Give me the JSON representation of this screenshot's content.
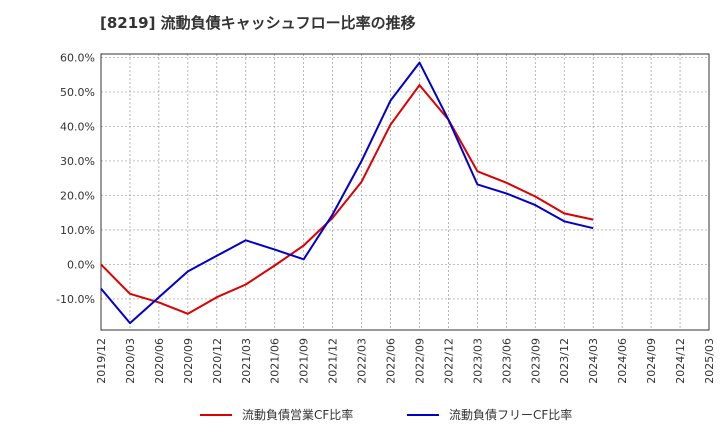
{
  "chart_data": {
    "type": "line",
    "title": "[8219]  流動負債キャッシュフロー比率の推移",
    "xlabel": "",
    "ylabel": "",
    "ylim": [
      -19.0,
      61.0
    ],
    "yticks": [
      60,
      50,
      40,
      30,
      20,
      10,
      0,
      -10
    ],
    "ytick_labels": [
      "60.0%",
      "50.0%",
      "40.0%",
      "30.0%",
      "20.0%",
      "10.0%",
      "0.0%",
      "-10.0%"
    ],
    "categories": [
      "2019/12",
      "2020/03",
      "2020/06",
      "2020/09",
      "2020/12",
      "2021/03",
      "2021/06",
      "2021/09",
      "2021/12",
      "2022/03",
      "2022/06",
      "2022/09",
      "2022/12",
      "2023/03",
      "2023/06",
      "2023/09",
      "2023/12",
      "2024/03",
      "2024/06",
      "2024/09",
      "2024/12",
      "2025/03"
    ],
    "grid": true,
    "legend_position": "bottom",
    "series": [
      {
        "name": "流動負債営業CF比率",
        "color": "#dd0000",
        "values": [
          0.0,
          -8.5,
          -11.0,
          -14.3,
          -9.5,
          -5.8,
          -0.3,
          5.5,
          13.5,
          24.0,
          40.5,
          52.0,
          42.0,
          27.0,
          23.7,
          19.7,
          14.8,
          13.0,
          null,
          null,
          null,
          null
        ]
      },
      {
        "name": "流動負債フリーCF比率",
        "color": "#0000cc",
        "values": [
          -7.0,
          -17.0,
          -9.5,
          -2.0,
          2.5,
          7.0,
          4.3,
          1.5,
          14.5,
          30.0,
          47.5,
          58.5,
          42.0,
          23.2,
          20.6,
          17.2,
          12.5,
          10.5,
          null,
          null,
          null,
          null
        ]
      }
    ]
  }
}
